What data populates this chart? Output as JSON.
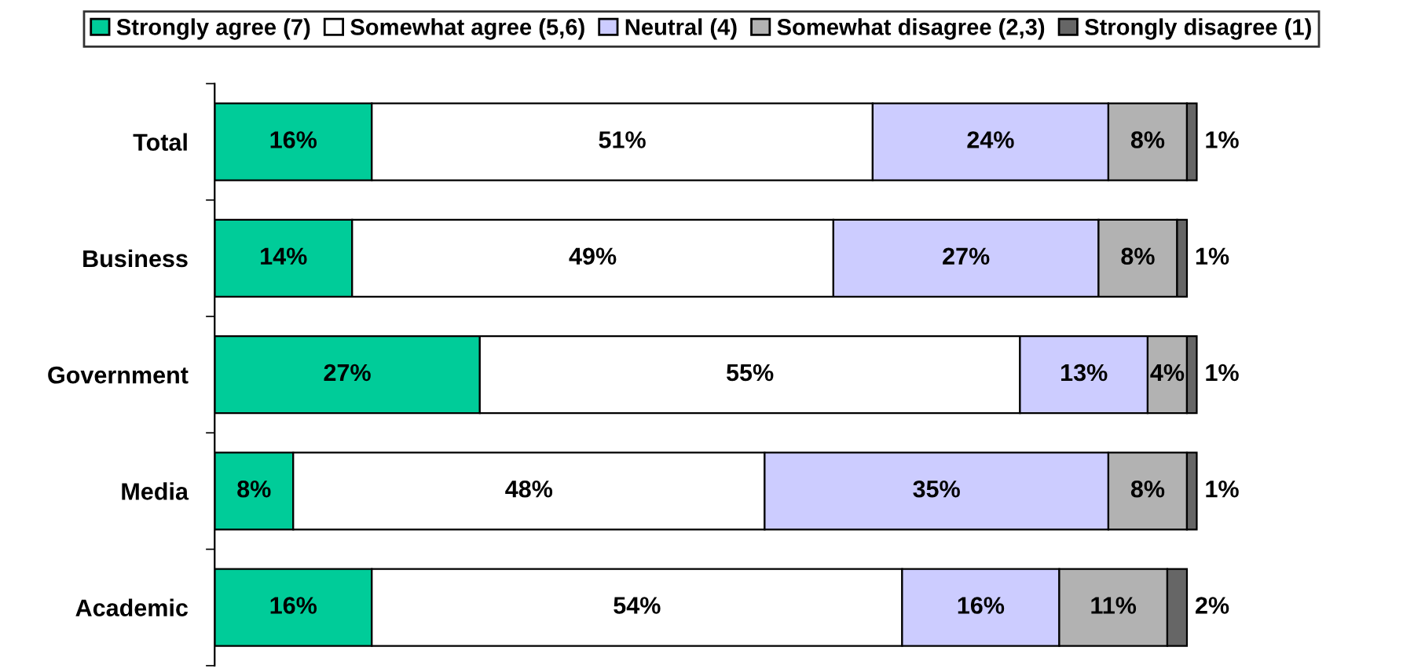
{
  "chart_data": {
    "type": "bar",
    "orientation": "horizontal",
    "stacked": true,
    "legend": "top",
    "grid": false,
    "tick_labels": "y",
    "categories": [
      "Total",
      "Business",
      "Government",
      "Media",
      "Academic"
    ],
    "series": [
      {
        "name": "Strongly agree (7)",
        "color": "#00cc99",
        "values": [
          16,
          14,
          27,
          8,
          16
        ],
        "value_labels": [
          "16%",
          "14%",
          "27%",
          "8%",
          "16%"
        ]
      },
      {
        "name": "Somewhat agree (5,6)",
        "color": "#ffffff",
        "values": [
          51,
          49,
          55,
          48,
          54
        ],
        "value_labels": [
          "51%",
          "49%",
          "55%",
          "48%",
          "54%"
        ]
      },
      {
        "name": "Neutral (4)",
        "color": "#ccccff",
        "values": [
          24,
          27,
          13,
          35,
          16
        ],
        "value_labels": [
          "24%",
          "27%",
          "13%",
          "35%",
          "16%"
        ]
      },
      {
        "name": "Somewhat disagree (2,3)",
        "color": "#b2b2b2",
        "values": [
          8,
          8,
          4,
          8,
          11
        ],
        "value_labels": [
          "8%",
          "8%",
          "4%",
          "8%",
          "11%"
        ]
      },
      {
        "name": "Strongly disagree (1)",
        "color": "#666666",
        "values": [
          1,
          1,
          1,
          1,
          2
        ],
        "value_labels": [
          "1%",
          "1%",
          "1%",
          "1%",
          "2%"
        ]
      }
    ]
  }
}
